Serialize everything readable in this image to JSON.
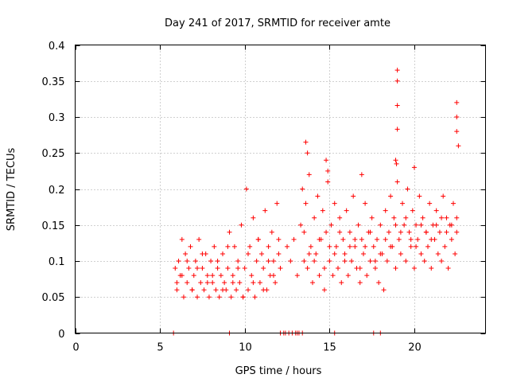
{
  "chart_data": {
    "type": "scatter",
    "title": "Day 241 of 2017, SRMTID for receiver amte",
    "xlabel": "GPS time / hours",
    "ylabel": "SRMTID / TECUs",
    "xlim": [
      0,
      24.2
    ],
    "ylim": [
      0,
      0.4
    ],
    "x_ticks": [
      0,
      5,
      10,
      15,
      20
    ],
    "y_ticks": [
      0,
      0.05,
      0.1,
      0.15,
      0.2,
      0.25,
      0.3,
      0.35,
      0.4
    ],
    "x_tick_labels": [
      "0",
      "5",
      "10",
      "15",
      "20"
    ],
    "y_tick_labels": [
      "0",
      "0.05",
      "0.1",
      "0.15",
      "0.2",
      "0.25",
      "0.3",
      "0.35",
      "0.4"
    ],
    "grid": true,
    "marker": "+",
    "series": [
      {
        "name": "SRMTID",
        "color": "#ff0000",
        "x": [
          5.9,
          6.0,
          6.1,
          6.2,
          6.3,
          6.4,
          6.5,
          6.6,
          6.7,
          6.8,
          6.9,
          7.0,
          7.1,
          7.2,
          7.3,
          7.4,
          7.5,
          7.6,
          7.7,
          7.8,
          7.9,
          8.0,
          8.1,
          8.2,
          8.3,
          8.4,
          8.5,
          8.6,
          8.7,
          8.8,
          8.9,
          9.0,
          9.1,
          9.2,
          9.3,
          9.4,
          9.5,
          9.6,
          9.7,
          9.8,
          9.9,
          10.0,
          10.1,
          10.2,
          10.3,
          10.4,
          10.5,
          10.6,
          10.7,
          10.8,
          10.9,
          11.0,
          11.1,
          11.2,
          11.3,
          11.4,
          11.5,
          11.6,
          11.7,
          11.8,
          11.9,
          12.0,
          12.1,
          12.5,
          12.7,
          12.9,
          13.1,
          13.3,
          13.4,
          13.5,
          13.6,
          13.7,
          13.8,
          13.9,
          14.0,
          14.1,
          14.2,
          14.3,
          14.4,
          14.5,
          14.6,
          14.7,
          14.8,
          14.9,
          15.0,
          15.1,
          15.2,
          15.3,
          15.4,
          15.5,
          15.6,
          15.7,
          15.8,
          15.9,
          16.0,
          16.1,
          16.2,
          16.3,
          16.4,
          16.5,
          16.6,
          16.7,
          16.8,
          16.9,
          17.0,
          17.1,
          17.2,
          17.3,
          17.4,
          17.5,
          17.6,
          17.7,
          17.8,
          17.9,
          18.0,
          18.1,
          18.2,
          18.3,
          18.4,
          18.5,
          18.6,
          18.7,
          18.8,
          18.9,
          19.0,
          19.1,
          19.2,
          19.3,
          19.4,
          19.5,
          19.6,
          19.7,
          19.8,
          19.9,
          20.0,
          20.1,
          20.2,
          20.3,
          20.4,
          20.5,
          20.6,
          20.7,
          20.8,
          20.9,
          21.0,
          21.1,
          21.2,
          21.3,
          21.4,
          21.5,
          21.6,
          21.7,
          21.8,
          21.9,
          22.0,
          22.1,
          22.2,
          22.3,
          22.4,
          22.5,
          6.0,
          6.3,
          6.6,
          6.9,
          7.2,
          7.5,
          7.8,
          8.1,
          8.4,
          8.7,
          9.0,
          9.3,
          9.6,
          9.9,
          10.2,
          10.5,
          10.8,
          11.1,
          11.4,
          11.7,
          12.0,
          13.5,
          13.8,
          14.1,
          14.4,
          14.7,
          15.0,
          15.3,
          15.6,
          15.9,
          16.2,
          16.5,
          16.8,
          17.1,
          17.4,
          17.7,
          18.0,
          18.3,
          18.6,
          18.9,
          19.2,
          19.5,
          19.8,
          20.1,
          20.4,
          20.7,
          21.0,
          21.3,
          21.6,
          21.9,
          22.2,
          22.5,
          19.0,
          19.0,
          19.0,
          19.0,
          22.5,
          22.5,
          22.5,
          22.6,
          13.6,
          13.7,
          18.9,
          18.95,
          14.8,
          14.9,
          16.9,
          20.0
        ],
        "y": [
          0.09,
          0.06,
          0.1,
          0.08,
          0.13,
          0.05,
          0.11,
          0.07,
          0.09,
          0.12,
          0.06,
          0.08,
          0.1,
          0.05,
          0.13,
          0.07,
          0.09,
          0.06,
          0.11,
          0.08,
          0.05,
          0.1,
          0.07,
          0.12,
          0.06,
          0.09,
          0.05,
          0.08,
          0.11,
          0.07,
          0.06,
          0.09,
          0.14,
          0.05,
          0.08,
          0.12,
          0.06,
          0.1,
          0.07,
          0.15,
          0.05,
          0.09,
          0.2,
          0.06,
          0.12,
          0.08,
          0.16,
          0.05,
          0.1,
          0.13,
          0.07,
          0.11,
          0.09,
          0.17,
          0.06,
          0.12,
          0.08,
          0.14,
          0.1,
          0.07,
          0.18,
          0.11,
          0.09,
          0.12,
          0.1,
          0.13,
          0.08,
          0.15,
          0.2,
          0.1,
          0.18,
          0.09,
          0.22,
          0.12,
          0.07,
          0.16,
          0.11,
          0.19,
          0.08,
          0.13,
          0.17,
          0.06,
          0.14,
          0.21,
          0.1,
          0.15,
          0.08,
          0.18,
          0.12,
          0.09,
          0.16,
          0.07,
          0.13,
          0.11,
          0.17,
          0.08,
          0.14,
          0.1,
          0.19,
          0.12,
          0.09,
          0.15,
          0.07,
          0.13,
          0.11,
          0.18,
          0.08,
          0.14,
          0.1,
          0.16,
          0.12,
          0.09,
          0.13,
          0.07,
          0.15,
          0.11,
          0.06,
          0.17,
          0.1,
          0.14,
          0.19,
          0.12,
          0.16,
          0.09,
          0.21,
          0.13,
          0.11,
          0.18,
          0.15,
          0.1,
          0.2,
          0.14,
          0.12,
          0.17,
          0.09,
          0.15,
          0.13,
          0.19,
          0.11,
          0.16,
          0.1,
          0.14,
          0.12,
          0.18,
          0.09,
          0.15,
          0.13,
          0.17,
          0.11,
          0.14,
          0.1,
          0.19,
          0.12,
          0.16,
          0.09,
          0.15,
          0.13,
          0.18,
          0.11,
          0.14,
          0.07,
          0.08,
          0.1,
          0.06,
          0.09,
          0.11,
          0.07,
          0.08,
          0.1,
          0.06,
          0.12,
          0.07,
          0.09,
          0.05,
          0.11,
          0.07,
          0.13,
          0.06,
          0.1,
          0.08,
          0.13,
          0.14,
          0.11,
          0.1,
          0.13,
          0.09,
          0.12,
          0.11,
          0.14,
          0.1,
          0.12,
          0.13,
          0.09,
          0.12,
          0.14,
          0.1,
          0.11,
          0.13,
          0.12,
          0.15,
          0.14,
          0.16,
          0.13,
          0.12,
          0.15,
          0.14,
          0.13,
          0.15,
          0.16,
          0.14,
          0.15,
          0.16,
          0.365,
          0.35,
          0.316,
          0.283,
          0.32,
          0.3,
          0.28,
          0.26,
          0.265,
          0.25,
          0.24,
          0.235,
          0.24,
          0.225,
          0.22,
          0.23
        ],
        "zero_markers": [
          5.8,
          9.1,
          12.1,
          12.3,
          12.4,
          12.6,
          12.8,
          13.0,
          13.1,
          13.2,
          13.4,
          15.3,
          17.6,
          18.0
        ]
      }
    ]
  }
}
